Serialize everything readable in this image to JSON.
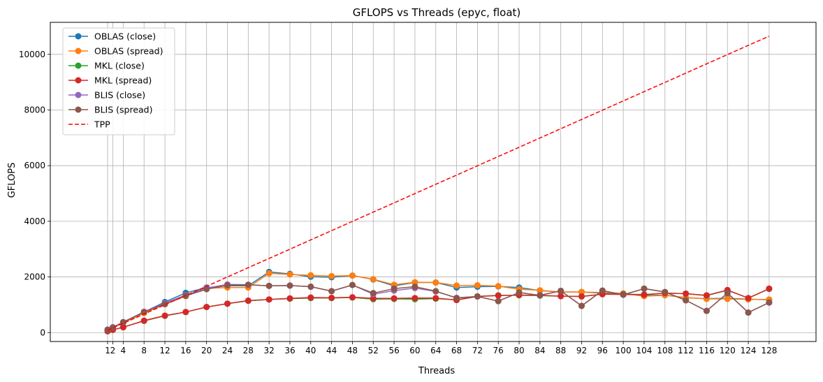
{
  "chart_data": {
    "type": "line",
    "title": "GFLOPS vs Threads (epyc, float)",
    "xlabel": "Threads",
    "ylabel": "GFLOPS",
    "ylim": [
      -320,
      11150
    ],
    "xlim": [
      -10,
      137
    ],
    "grid": true,
    "legend_position": "top-left",
    "x": [
      1,
      2,
      4,
      8,
      12,
      16,
      20,
      24,
      28,
      32,
      36,
      40,
      44,
      48,
      52,
      56,
      60,
      64,
      68,
      72,
      76,
      80,
      84,
      88,
      92,
      96,
      100,
      104,
      108,
      112,
      116,
      120,
      124,
      128
    ],
    "x_tick_labels": [
      "1",
      "2",
      "4",
      "8",
      "12",
      "16",
      "20",
      "24",
      "28",
      "32",
      "36",
      "40",
      "44",
      "48",
      "52",
      "56",
      "60",
      "64",
      "68",
      "72",
      "76",
      "80",
      "84",
      "88",
      "92",
      "96",
      "100",
      "104",
      "108",
      "112",
      "116",
      "120",
      "124",
      "128"
    ],
    "y_ticks": [
      0,
      2000,
      4000,
      6000,
      8000,
      10000
    ],
    "y_tick_labels": [
      "0",
      "2000",
      "4000",
      "6000",
      "8000",
      "10000"
    ],
    "series": [
      {
        "name": "OBLAS (close)",
        "color": "#1f77b4",
        "style": "solid-marker",
        "values": [
          95,
          190,
          370,
          740,
          1100,
          1430,
          1620,
          1680,
          1680,
          2180,
          2110,
          2010,
          1990,
          2050,
          1910,
          1680,
          1800,
          1800,
          1620,
          1650,
          1660,
          1620,
          1510,
          1460,
          1460,
          1420,
          1400,
          1330,
          1350,
          1250,
          1220,
          1230,
          1200,
          1180
        ]
      },
      {
        "name": "OBLAS (spread)",
        "color": "#ff7f0e",
        "style": "solid-marker",
        "values": [
          90,
          180,
          350,
          700,
          1020,
          1310,
          1590,
          1620,
          1620,
          2130,
          2090,
          2060,
          2030,
          2050,
          1920,
          1720,
          1810,
          1800,
          1690,
          1700,
          1670,
          1560,
          1520,
          1460,
          1460,
          1440,
          1410,
          1310,
          1340,
          1260,
          1210,
          1210,
          1190,
          1190
        ]
      },
      {
        "name": "MKL (close)",
        "color": "#2ca02c",
        "style": "solid-marker",
        "values": [
          50,
          100,
          200,
          420,
          600,
          740,
          920,
          1040,
          1140,
          1190,
          1220,
          1240,
          1240,
          1260,
          1200,
          1210,
          1200,
          1220,
          1180,
          1300,
          1340,
          1340,
          1330,
          1310,
          1300,
          1380,
          1380,
          1370,
          1420,
          1400,
          1330,
          1520,
          1240,
          1570
        ]
      },
      {
        "name": "MKL (spread)",
        "color": "#d62728",
        "style": "solid-marker",
        "values": [
          50,
          100,
          190,
          430,
          610,
          740,
          920,
          1040,
          1150,
          1190,
          1230,
          1260,
          1250,
          1270,
          1230,
          1230,
          1240,
          1240,
          1170,
          1300,
          1330,
          1350,
          1340,
          1310,
          1300,
          1380,
          1370,
          1360,
          1420,
          1400,
          1340,
          1530,
          1240,
          1580
        ]
      },
      {
        "name": "BLIS (close)",
        "color": "#9467bd",
        "style": "solid-marker",
        "values": [
          110,
          190,
          380,
          750,
          1060,
          1350,
          1600,
          1730,
          1720,
          1680,
          1690,
          1650,
          1490,
          1710,
          1380,
          1510,
          1600,
          1480,
          1250,
          1300,
          1130,
          1440,
          1340,
          1500,
          960,
          1510,
          1360,
          1580,
          1460,
          1160,
          780,
          1420,
          720,
          1080
        ]
      },
      {
        "name": "BLIS (spread)",
        "color": "#8c564b",
        "style": "solid-marker",
        "values": [
          100,
          180,
          370,
          740,
          1020,
          1320,
          1560,
          1700,
          1720,
          1680,
          1690,
          1650,
          1490,
          1710,
          1420,
          1580,
          1650,
          1490,
          1240,
          1300,
          1130,
          1440,
          1340,
          1500,
          960,
          1510,
          1360,
          1580,
          1460,
          1160,
          780,
          1420,
          720,
          1080
        ]
      },
      {
        "name": "TPP",
        "color": "#ff0000",
        "style": "dashed",
        "values": [
          83,
          166,
          333,
          666,
          999,
          1333,
          1666,
          1999,
          2332,
          2665,
          2998,
          3331,
          3664,
          3997,
          4330,
          4663,
          4996,
          5329,
          5662,
          5995,
          6328,
          6661,
          6994,
          7327,
          7660,
          7993,
          8326,
          8659,
          8992,
          9325,
          9658,
          9991,
          10324,
          10650
        ]
      }
    ]
  }
}
